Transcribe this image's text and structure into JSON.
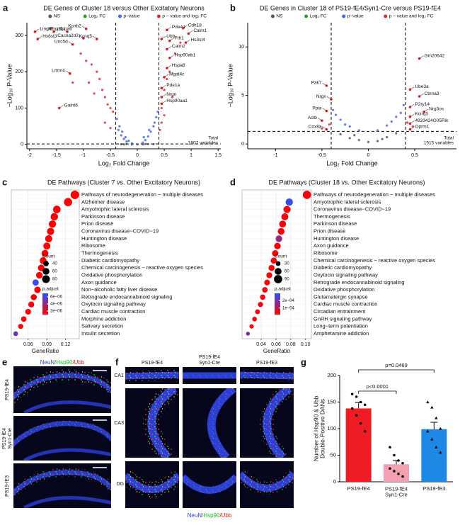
{
  "chart_data": [
    {
      "panel": "a",
      "type": "volcano",
      "title": "DE Genes of Cluster 18 versus Other Excitatory Neurons",
      "series": [
        {
          "name": "NS",
          "color": "#555555",
          "x": [
            -0.3,
            -0.2,
            -0.1,
            0,
            0.1,
            0.2,
            0.3,
            -0.25,
            0.15
          ],
          "y": [
            0.5,
            1,
            0.3,
            0.2,
            0.4,
            0.8,
            0.6,
            0.2,
            1.1
          ]
        },
        {
          "name": "Log₂ FC",
          "color": "#2ca02c",
          "x": [],
          "y": []
        },
        {
          "name": "p−value",
          "color": "#4169e1",
          "x": [
            -0.38,
            -0.33,
            -0.28,
            -0.22,
            -0.16,
            -0.1,
            -0.35,
            -0.3,
            -0.25,
            -0.2,
            0.1,
            0.15,
            0.2,
            0.25,
            0.3,
            0.35,
            0.38,
            0.12,
            0.22,
            0.32
          ],
          "y": [
            70,
            50,
            35,
            20,
            10,
            3,
            40,
            25,
            15,
            8,
            5,
            12,
            22,
            35,
            50,
            75,
            90,
            20,
            40,
            60
          ]
        },
        {
          "name": "p − value and log₂ FC",
          "color": "#e8262b",
          "x": [
            -1.05,
            -0.95,
            -0.85,
            -0.75,
            -0.7,
            -0.65,
            -0.6,
            -0.55,
            -0.5,
            -0.45,
            -0.9,
            -0.8,
            -0.6,
            -0.5,
            -1.6,
            -1.2,
            0.45,
            0.5,
            0.55,
            0.6,
            0.7,
            0.5,
            0.45,
            0.65,
            0.8,
            0.42
          ],
          "y": [
            250,
            230,
            220,
            200,
            180,
            150,
            130,
            110,
            100,
            90,
            170,
            140,
            60,
            45,
            320,
            170,
            100,
            150,
            180,
            200,
            250,
            80,
            60,
            130,
            280,
            40
          ]
        }
      ],
      "genes": [
        {
          "name": "Lingo2",
          "x": -1.9,
          "y": 310,
          "color": "#000000"
        },
        {
          "name": "Hs6st3",
          "x": -1.85,
          "y": 290,
          "color": "#000000"
        },
        {
          "name": "Epha6",
          "x": -1.55,
          "y": 310,
          "color": "#000000"
        },
        {
          "name": "Kcnip4",
          "x": -1.3,
          "y": 310,
          "color": "#000000"
        },
        {
          "name": "Unc5d",
          "x": -1.2,
          "y": 275,
          "color": "#000000"
        },
        {
          "name": "Kcnb2",
          "x": -0.95,
          "y": 318,
          "color": "#000000"
        },
        {
          "name": "Cacna2d3",
          "x": -1.0,
          "y": 292,
          "color": "#000000"
        },
        {
          "name": "Kcnq5",
          "x": -0.75,
          "y": 290,
          "color": "#000000"
        },
        {
          "name": "Lrrtm4",
          "x": -1.25,
          "y": 195,
          "color": "#000000"
        },
        {
          "name": "Galnt6",
          "x": -1.45,
          "y": 100,
          "color": "#000000"
        },
        {
          "name": "Pde4d",
          "x": 0.55,
          "y": 315,
          "color": "#000000"
        },
        {
          "name": "Cdh18",
          "x": 0.85,
          "y": 320,
          "color": "#000000"
        },
        {
          "name": "Calm1",
          "x": 0.95,
          "y": 305,
          "color": "#e8262b"
        },
        {
          "name": "Ubb",
          "x": 0.45,
          "y": 290,
          "color": "#e8262b"
        },
        {
          "name": "Fth1",
          "x": 0.6,
          "y": 285,
          "color": "#e8262b"
        },
        {
          "name": "Hs3st4",
          "x": 0.9,
          "y": 280,
          "color": "#000000"
        },
        {
          "name": "Calm2",
          "x": 0.55,
          "y": 262,
          "color": "#e8262b"
        },
        {
          "name": "Hsp90ab1",
          "x": 0.6,
          "y": 238,
          "color": "#e8262b"
        },
        {
          "name": "Hspa8",
          "x": 0.55,
          "y": 210,
          "color": "#e8262b"
        },
        {
          "name": "Mgat4c",
          "x": 0.5,
          "y": 185,
          "color": "#000000"
        },
        {
          "name": "Pde1a",
          "x": 0.45,
          "y": 155,
          "color": "#000000"
        },
        {
          "name": "Nrgn",
          "x": 0.45,
          "y": 130,
          "color": "#e8262b"
        },
        {
          "name": "Hsp90aa1",
          "x": 0.45,
          "y": 112,
          "color": "#e8262b"
        }
      ],
      "thresholds": {
        "x": [
          -0.4,
          0.4
        ],
        "y": 1.3
      },
      "xlabel": "Log₂ Fold Change",
      "ylabel": "−Log₁₀ P-Value",
      "xlim": [
        -2.05,
        1.55
      ],
      "xticks": [
        -2,
        -1.5,
        -1,
        -0.5,
        0,
        0.5,
        1,
        1.5
      ],
      "ylim": [
        -12,
        335
      ],
      "yticks": [
        0,
        100,
        200,
        300
      ],
      "annotation": "Total\n1907 variables"
    },
    {
      "panel": "b",
      "type": "volcano",
      "title": "DE Genes in Cluster 18 of PS19-fE4/Syn1-Cre versus PS19-fE4",
      "series": [
        {
          "name": "NS",
          "color": "#555555",
          "x": [
            -0.3,
            -0.2,
            -0.1,
            0,
            0.1,
            0.2,
            0.3,
            -0.15,
            0.15
          ],
          "y": [
            1,
            0.6,
            0.4,
            0.2,
            0.3,
            0.7,
            1.1,
            0.9,
            0.5
          ]
        },
        {
          "name": "Log₂ FC",
          "color": "#2ca02c",
          "x": [],
          "y": []
        },
        {
          "name": "p−value",
          "color": "#4169e1",
          "x": [
            -0.38,
            -0.3,
            -0.2,
            -0.1,
            0.1,
            0.2,
            0.3,
            0.38,
            -0.35,
            0.35,
            -0.25,
            0.25
          ],
          "y": [
            3.5,
            2.5,
            1.8,
            1.4,
            1.4,
            1.9,
            2.8,
            4.0,
            3.0,
            3.2,
            2.0,
            2.3
          ]
        },
        {
          "name": "p − value and log₂ FC",
          "color": "#e8262b",
          "x": [
            -0.42,
            0.42,
            -0.5,
            0.48
          ],
          "y": [
            2.0,
            2.2,
            1.6,
            1.8
          ]
        }
      ],
      "genes": [
        {
          "name": "Gm20642",
          "x": 0.55,
          "y": 8.8,
          "color": "#e8262b"
        },
        {
          "name": "Pak7",
          "x": -0.45,
          "y": 6.0,
          "color": "#000000"
        },
        {
          "name": "Ube3a",
          "x": 0.45,
          "y": 5.6,
          "color": "#000000"
        },
        {
          "name": "Ctnna3",
          "x": 0.55,
          "y": 4.9,
          "color": "#000000"
        },
        {
          "name": "Nrgn",
          "x": -0.4,
          "y": 4.6,
          "color": "#e8262b"
        },
        {
          "name": "P2ry14",
          "x": 0.45,
          "y": 3.8,
          "color": "#000000"
        },
        {
          "name": "Nrg3os",
          "x": 0.6,
          "y": 3.3,
          "color": "#000000"
        },
        {
          "name": "Ppia",
          "x": -0.45,
          "y": 3.4,
          "color": "#000000"
        },
        {
          "name": "Kcnq3",
          "x": 0.45,
          "y": 2.8,
          "color": "#000000"
        },
        {
          "name": "Actb",
          "x": -0.5,
          "y": 2.4,
          "color": "#000000"
        },
        {
          "name": "4933424G05Rik",
          "x": 0.45,
          "y": 2.1,
          "color": "#000000"
        },
        {
          "name": "Cox8a",
          "x": -0.45,
          "y": 1.5,
          "color": "#000000"
        },
        {
          "name": "Oprm1",
          "x": 0.45,
          "y": 1.5,
          "color": "#000000"
        }
      ],
      "thresholds": {
        "x": [
          -0.4,
          0.4
        ],
        "y": 1.3
      },
      "xlabel": "Log₂ Fold Change",
      "ylabel": "−Log₁₀ P-Value",
      "xlim": [
        -1.3,
        0.95
      ],
      "xticks": [
        -1,
        -0.5,
        0,
        0.5
      ],
      "ylim": [
        -0.5,
        12.5
      ],
      "yticks": [
        0,
        5,
        10
      ],
      "annotation": "Total\n1515 variables"
    },
    {
      "panel": "c",
      "type": "dot",
      "title": "DE Pathways (Cluster 7 vs. Other Excitatory Neurons)",
      "categories": [
        "Pathways of neurodegeneration − multiple diseases",
        "Alzheimer disease",
        "Amyotrophic lateral sclerosis",
        "Parkinson disease",
        "Prion disease",
        "Coronavirus disease−COVID−19",
        "Huntington disease",
        "Ribosome",
        "Thermogenesis",
        "Diabetic cardiomyopathy",
        "Chemical carcinogenesis − reactive oxygen species",
        "Oxidative phosphorylation",
        "Axon guidance",
        "Non−alcoholic fatty liver disease",
        "Retrograde endocannabinoid signaling",
        "Oxytocin signaling pathway",
        "Cardiac muscle contraction",
        "Morphine addiction",
        "Salivary secretion",
        "Insulin secretion"
      ],
      "values": [
        0.135,
        0.124,
        0.106,
        0.102,
        0.099,
        0.096,
        0.093,
        0.09,
        0.087,
        0.084,
        0.081,
        0.078,
        0.072,
        0.075,
        0.069,
        0.065,
        0.06,
        0.053,
        0.048,
        0.04
      ],
      "counts": [
        95,
        87,
        75,
        72,
        70,
        68,
        66,
        64,
        62,
        60,
        58,
        56,
        51,
        54,
        49,
        46,
        43,
        38,
        34,
        29
      ],
      "p_adjust": [
        1.1e-06,
        1.1e-06,
        1.1e-06,
        1.1e-06,
        1.1e-06,
        1.1e-06,
        1.1e-06,
        1.1e-06,
        1.1e-06,
        1.1e-06,
        1.1e-06,
        1.1e-06,
        6.5e-06,
        1.1e-06,
        1.1e-06,
        1.1e-06,
        1.1e-06,
        1.1e-06,
        1.1e-06,
        5e-06
      ],
      "xlabel": "GeneRatio",
      "xlim": [
        0.033,
        0.142
      ],
      "xticks": [
        0.06,
        0.09,
        0.12
      ],
      "grid": true,
      "count_legend": {
        "title": "Count",
        "ticks": [
          40,
          60,
          80
        ]
      },
      "color_legend": {
        "title": "p.adjust",
        "lim": [
          1e-06,
          7e-06
        ],
        "colors": [
          "#ff0000",
          "#2850ff"
        ],
        "ticks": [
          {
            "value": 6e-06,
            "label": "6e−06"
          },
          {
            "value": 4e-06,
            "label": "4e−06"
          },
          {
            "value": 2e-06,
            "label": "2e−06"
          }
        ]
      }
    },
    {
      "panel": "d",
      "type": "dot",
      "title": "DE Pathways (Cluster 18 vs. Other Excitatory Neurons)",
      "categories": [
        "Pathways of neurodegeneration − multiple diseases",
        "Amyotrophic lateral sclerosis",
        "Coronavirus disease−COVID−19",
        "Thermogenesis",
        "Parkinson disease",
        "Prion disease",
        "Huntington disease",
        "Axon guidance",
        "Ribosome",
        "Chemical carcinogenesis − reactive oxygen species",
        "Diabetic cardiomyopathy",
        "Oxytocin signaling pathway",
        "Retrograde endocannabinoid signaling",
        "Oxidative phosphorylation",
        "Glutamatergic synapse",
        "Cardiac muscle contraction",
        "Circadian entrainment",
        "GnRH signaling pathway",
        "Long−term potentiation",
        "Amphetamine addiction"
      ],
      "values": [
        0.102,
        0.078,
        0.075,
        0.072,
        0.069,
        0.067,
        0.064,
        0.062,
        0.059,
        0.057,
        0.054,
        0.051,
        0.048,
        0.045,
        0.042,
        0.039,
        0.035,
        0.031,
        0.027,
        0.022
      ],
      "counts": [
        90,
        69,
        66,
        64,
        61,
        59,
        57,
        55,
        52,
        50,
        48,
        45,
        43,
        40,
        37,
        35,
        31,
        28,
        24,
        20
      ],
      "p_adjust": [
        2e-05,
        0.00028,
        2e-05,
        2e-05,
        2e-05,
        2e-05,
        0.00016,
        2e-05,
        2e-05,
        2e-05,
        2e-05,
        2e-05,
        2e-05,
        2e-05,
        2e-05,
        2e-05,
        2e-05,
        2e-05,
        2e-05,
        0.0002
      ],
      "xlabel": "GeneRatio",
      "xlim": [
        0.014,
        0.108
      ],
      "xticks": [
        0.04,
        0.06,
        0.08,
        {
          "value": 0.1,
          "label": "0.10"
        }
      ],
      "grid": true,
      "count_legend": {
        "title": "Count",
        "ticks": [
          30,
          60,
          90
        ]
      },
      "color_legend": {
        "title": "p.adjust",
        "lim": [
          1e-05,
          0.0003
        ],
        "colors": [
          "#ff0000",
          "#2850ff"
        ],
        "ticks": [
          {
            "value": 0.0002,
            "label": "2e−04"
          },
          {
            "value": 0.0001,
            "label": "1e−04"
          }
        ]
      }
    },
    {
      "panel": "g",
      "type": "bar",
      "categories": [
        "PS19-fE4",
        "PS19-fE4\nSyn1-Cre",
        "PS19-fE3"
      ],
      "values": [
        138,
        33,
        99
      ],
      "errors": [
        11,
        7,
        13
      ],
      "colors": [
        "#ee1c25",
        "#f4a0b0",
        "#1e88e5"
      ],
      "markers": [
        "circle",
        "circle",
        "triangle"
      ],
      "points": [
        [
          165,
          160,
          150,
          145,
          138,
          125,
          110,
          95
        ],
        [
          65,
          50,
          40,
          35,
          25,
          20,
          15,
          10
        ],
        [
          150,
          140,
          120,
          100,
          95,
          80,
          65,
          55
        ]
      ],
      "ylabel": "Number of Hsp90 & Ubb\nDouble-Positive DANs",
      "ylim": [
        0,
        200
      ],
      "yticks": [
        0,
        50,
        100,
        150,
        200
      ],
      "comparisons": [
        {
          "groups": [
            0,
            1
          ],
          "label": "p<0.0001"
        },
        {
          "groups": [
            0,
            2
          ],
          "label": "p=0.0469"
        }
      ]
    }
  ],
  "panel_e": {
    "label": "e",
    "stain": [
      "NeuN",
      "/Hsp90",
      "/Ubb"
    ],
    "rows": [
      "PS19-fE4",
      "PS19-fE4\nSyn1-Cre",
      "PS19-fE3"
    ]
  },
  "panel_f": {
    "label": "f",
    "columns": [
      "PS19-fE4",
      "PS19-fE4\nSyn1-Cre",
      "PS19-fE3"
    ],
    "rows": [
      "CA1",
      "CA3",
      "DG"
    ],
    "stain": [
      "NeuN",
      "/Hsp90",
      "/Ubb"
    ]
  }
}
